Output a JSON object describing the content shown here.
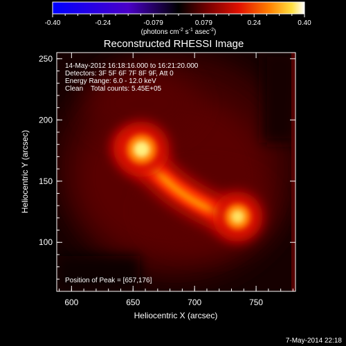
{
  "colorbar": {
    "ticks": [
      "-0.40",
      "-0.24",
      "-0.079",
      "0.079",
      "0.24",
      "0.40"
    ],
    "label_base": "(photons cm",
    "label_exp1": "-2",
    "label_mid": " s",
    "label_exp2": "-1",
    "label_mid2": " asec",
    "label_exp3": "-2",
    "label_end": ")"
  },
  "chart_data": {
    "type": "heatmap",
    "title": "Reconstructed RHESSI Image",
    "xlabel": "Heliocentric X (arcsec)",
    "ylabel": "Heliocentric Y (arcsec)",
    "xlim": [
      588,
      782
    ],
    "ylim": [
      60,
      255
    ],
    "xticks": [
      "600",
      "650",
      "700",
      "750"
    ],
    "yticks": [
      "100",
      "150",
      "200",
      "250"
    ],
    "value_range": [
      -0.4,
      0.4
    ],
    "colormap": "black-red-orange-yellow-white (positive), blue-purple (negative)",
    "sources": [
      {
        "x": 657,
        "y": 176,
        "peak": 0.4
      },
      {
        "x": 735,
        "y": 121,
        "peak": 0.36
      }
    ],
    "annotations": {
      "line1": "14-May-2012 16:18:16.000 to 16:21:20.000",
      "line2": "Detectors: 3F 5F 6F 7F 8F 9F, Att 0",
      "line3": "Energy Range: 6.0 - 12.0 keV",
      "line4": "Clean    Total counts: 5.45E+05",
      "peak": "Position of Peak = [657,176]"
    }
  },
  "footer": {
    "timestamp": "7-May-2014 22:18"
  }
}
